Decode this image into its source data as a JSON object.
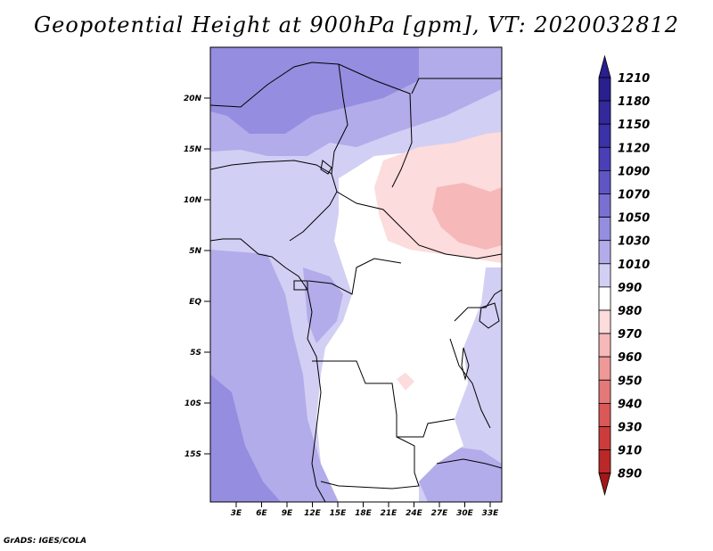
{
  "title": "Geopotential Height at 900hPa [gpm], VT: 2020032812",
  "credit": "GrADS: IGES/COLA",
  "lat_labels": [
    "20N",
    "15N",
    "10N",
    "5N",
    "EQ",
    "5S",
    "10S",
    "15S"
  ],
  "lon_labels": [
    "3E",
    "6E",
    "9E",
    "12E",
    "15E",
    "18E",
    "21E",
    "24E",
    "27E",
    "30E",
    "33E"
  ],
  "colorbar": {
    "labels": [
      "1210",
      "1180",
      "1150",
      "1120",
      "1090",
      "1070",
      "1050",
      "1030",
      "1010",
      "990",
      "980",
      "970",
      "960",
      "950",
      "940",
      "930",
      "910",
      "890"
    ],
    "colors": [
      "#2a1f8f",
      "#33289c",
      "#3b31a8",
      "#4a3fb6",
      "#5f55c4",
      "#7a70d2",
      "#958ddf",
      "#b2acea",
      "#d2cff4",
      "#ffffff",
      "#fcdcdc",
      "#f6b8b8",
      "#ef9898",
      "#e57878",
      "#da5858",
      "#cc3c3c",
      "#ba2828",
      "#a21818"
    ]
  },
  "field_colors": {
    "c1050": "#958ddf",
    "c1030": "#b2acea",
    "c1010": "#d2cff4",
    "c990": "#ffffff",
    "c980": "#fcdcdc",
    "c970": "#f6b8b8"
  }
}
